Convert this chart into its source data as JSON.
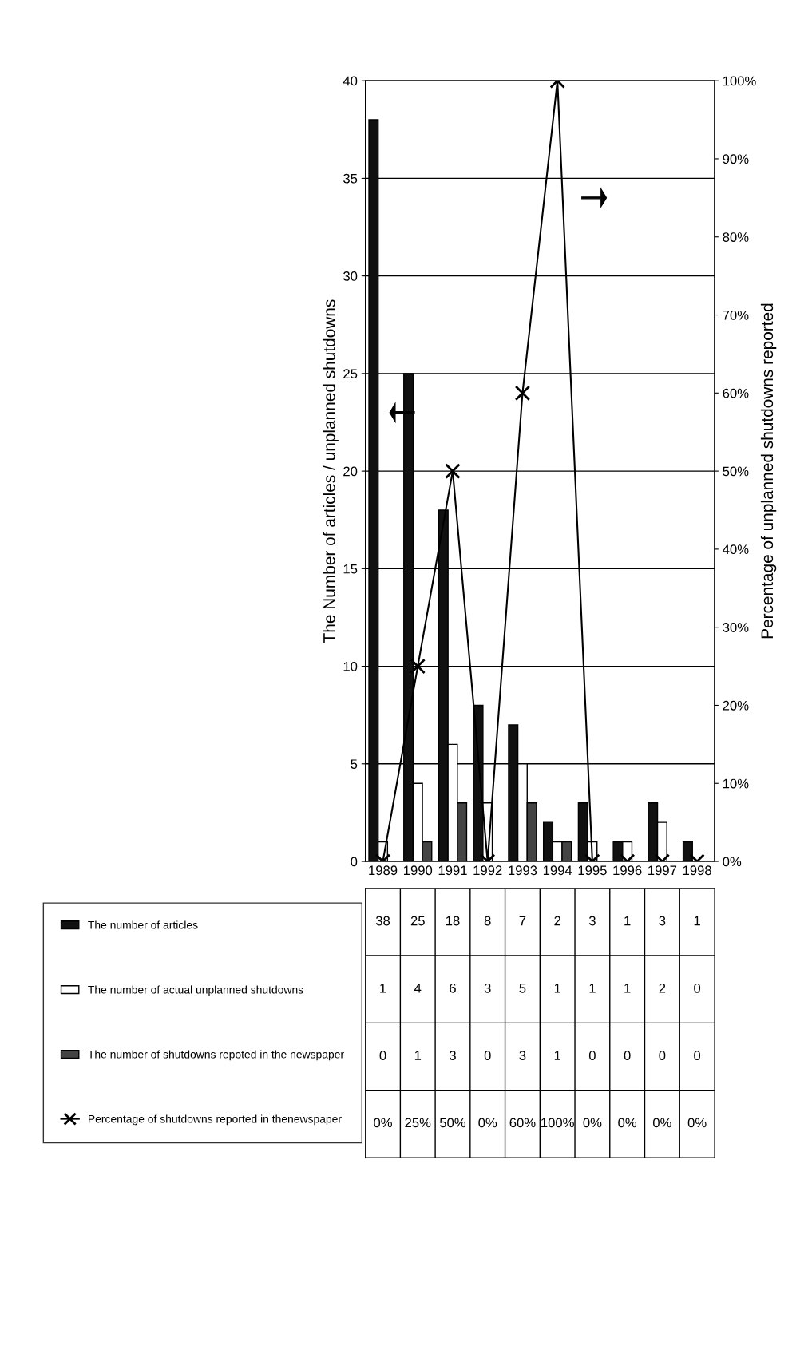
{
  "chart_data": {
    "type": "bar",
    "ylabel": "The Number of articles / unplanned shutdowns",
    "y2label": "Percentage of unplanned shutdowns reported",
    "categories": [
      "1989",
      "1990",
      "1991",
      "1992",
      "1993",
      "1994",
      "1995",
      "1996",
      "1997",
      "1998"
    ],
    "ylim": [
      0,
      40
    ],
    "yticks": [
      0,
      5,
      10,
      15,
      20,
      25,
      30,
      35,
      40
    ],
    "y2lim": [
      0,
      100
    ],
    "y2ticks": [
      {
        "value": 0,
        "label": "0%"
      },
      {
        "value": 10,
        "label": "10%"
      },
      {
        "value": 20,
        "label": "20%"
      },
      {
        "value": 30,
        "label": "30%"
      },
      {
        "value": 40,
        "label": "40%"
      },
      {
        "value": 50,
        "label": "50%"
      },
      {
        "value": 60,
        "label": "60%"
      },
      {
        "value": 70,
        "label": "70%"
      },
      {
        "value": 80,
        "label": "80%"
      },
      {
        "value": 90,
        "label": "90%"
      },
      {
        "value": 100,
        "label": "100%"
      }
    ],
    "grid": "y",
    "legend": "left",
    "series": [
      {
        "name": "The number of articles",
        "color": "#111111",
        "values": [
          38,
          25,
          18,
          8,
          7,
          2,
          3,
          1,
          3,
          1
        ],
        "value_labels": [
          "38",
          "25",
          "18",
          "8",
          "7",
          "2",
          "3",
          "1",
          "3",
          "1"
        ]
      },
      {
        "name": "The number of actual unplanned shutdowns",
        "color": "#ffffff",
        "values": [
          1,
          4,
          6,
          3,
          5,
          1,
          1,
          1,
          2,
          0
        ],
        "value_labels": [
          "1",
          "4",
          "6",
          "3",
          "5",
          "1",
          "1",
          "1",
          "2",
          "0"
        ]
      },
      {
        "name": "The number of shutdowns repoted in the newspaper",
        "color": "#444444",
        "values": [
          0,
          1,
          3,
          0,
          3,
          1,
          0,
          0,
          0,
          0
        ],
        "value_labels": [
          "0",
          "1",
          "3",
          "0",
          "3",
          "1",
          "0",
          "0",
          "0",
          "0"
        ]
      },
      {
        "name": "Percentage of shutdowns reported in thenewspaper",
        "type": "line",
        "axis": "y2",
        "color": "#000000",
        "marker": "cross",
        "line_style": "solid",
        "values": [
          0,
          25,
          50,
          0,
          60,
          100,
          0,
          0,
          0,
          0
        ],
        "value_labels": [
          "0%",
          "25%",
          "50%",
          "0%",
          "60%",
          "100%",
          "0%",
          "0%",
          "0%",
          "0%"
        ]
      }
    ]
  }
}
